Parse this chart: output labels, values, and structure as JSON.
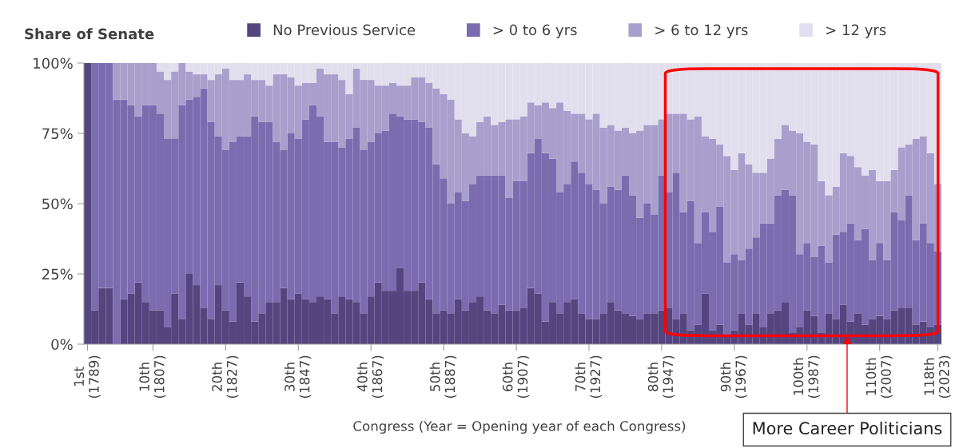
{
  "chart_data": {
    "type": "bar",
    "stacked": true,
    "title": "Share of Senate",
    "xlabel": "Congress (Year = Opening year of each Congress)",
    "categories": [
      "1st\n(1789)",
      null,
      null,
      null,
      null,
      null,
      null,
      null,
      null,
      "10th\n(1807)",
      null,
      null,
      null,
      null,
      null,
      null,
      null,
      null,
      null,
      "20th\n(1827)",
      null,
      null,
      null,
      null,
      null,
      null,
      null,
      null,
      null,
      "30th\n(1847)",
      null,
      null,
      null,
      null,
      null,
      null,
      null,
      null,
      null,
      "40th\n(1867)",
      null,
      null,
      null,
      null,
      null,
      null,
      null,
      null,
      null,
      "50th\n(1887)",
      null,
      null,
      null,
      null,
      null,
      null,
      null,
      null,
      null,
      "60th\n(1907)",
      null,
      null,
      null,
      null,
      null,
      null,
      null,
      null,
      null,
      "70th\n(1927)",
      null,
      null,
      null,
      null,
      null,
      null,
      null,
      null,
      null,
      "80th\n(1947)",
      null,
      null,
      null,
      null,
      null,
      null,
      null,
      null,
      null,
      "90th\n(1967)",
      null,
      null,
      null,
      null,
      null,
      null,
      null,
      null,
      null,
      "100th\n(1987)",
      null,
      null,
      null,
      null,
      null,
      null,
      null,
      null,
      null,
      "110th\n(2007)",
      null,
      null,
      null,
      null,
      null,
      null,
      null,
      "118th\n(2023)"
    ],
    "series": [
      {
        "name": "No Previous Service",
        "color": "#54457f",
        "values": [
          100,
          12,
          20,
          20,
          0,
          16,
          18,
          22,
          15,
          12,
          12,
          6,
          18,
          9,
          25,
          21,
          13,
          9,
          21,
          12,
          8,
          22,
          17,
          8,
          11,
          15,
          15,
          20,
          16,
          18,
          16,
          15,
          17,
          16,
          11,
          17,
          16,
          15,
          11,
          17,
          22,
          19,
          19,
          27,
          19,
          19,
          22,
          16,
          11,
          12,
          11,
          16,
          12,
          15,
          17,
          12,
          11,
          14,
          12,
          12,
          13,
          20,
          18,
          8,
          15,
          11,
          15,
          16,
          11,
          9,
          9,
          11,
          15,
          12,
          11,
          10,
          9,
          11,
          11,
          12,
          13,
          9,
          11,
          5,
          7,
          18,
          5,
          7,
          3,
          5,
          11,
          7,
          11,
          6,
          11,
          12,
          15,
          4,
          6,
          12,
          10,
          4,
          11,
          9,
          14,
          8,
          11,
          7,
          9,
          10,
          9,
          12,
          13,
          13,
          7,
          8,
          6,
          7
        ]
      },
      {
        "name": "> 0 to 6 yrs",
        "color": "#7b6cb0",
        "values": [
          0,
          88,
          80,
          80,
          87,
          71,
          67,
          59,
          70,
          73,
          70,
          67,
          55,
          76,
          62,
          67,
          78,
          70,
          53,
          57,
          64,
          52,
          57,
          73,
          68,
          64,
          57,
          49,
          59,
          55,
          64,
          70,
          64,
          56,
          61,
          53,
          57,
          62,
          58,
          55,
          53,
          57,
          63,
          54,
          61,
          61,
          57,
          61,
          53,
          47,
          39,
          38,
          39,
          42,
          43,
          48,
          49,
          46,
          40,
          46,
          45,
          48,
          55,
          60,
          51,
          43,
          42,
          49,
          50,
          48,
          46,
          39,
          41,
          43,
          49,
          43,
          36,
          39,
          35,
          48,
          41,
          52,
          36,
          46,
          29,
          29,
          35,
          42,
          26,
          27,
          19,
          27,
          27,
          37,
          32,
          41,
          40,
          49,
          26,
          24,
          21,
          31,
          18,
          30,
          26,
          35,
          26,
          34,
          21,
          26,
          21,
          35,
          31,
          40,
          30,
          35,
          30,
          26
        ]
      },
      {
        "name": "> 6 to 12 yrs",
        "color": "#a89fcc",
        "values": [
          0,
          0,
          0,
          0,
          13,
          13,
          15,
          19,
          15,
          15,
          15,
          21,
          24,
          15,
          10,
          8,
          5,
          15,
          22,
          29,
          22,
          20,
          22,
          13,
          15,
          13,
          24,
          27,
          20,
          19,
          13,
          8,
          17,
          24,
          24,
          24,
          16,
          21,
          25,
          22,
          17,
          16,
          11,
          11,
          12,
          15,
          16,
          16,
          27,
          30,
          37,
          26,
          24,
          17,
          19,
          21,
          18,
          19,
          28,
          22,
          23,
          18,
          12,
          18,
          18,
          32,
          26,
          17,
          21,
          23,
          27,
          27,
          22,
          21,
          17,
          22,
          31,
          28,
          32,
          20,
          28,
          21,
          35,
          29,
          45,
          27,
          33,
          22,
          38,
          30,
          38,
          30,
          23,
          18,
          23,
          20,
          23,
          23,
          43,
          36,
          40,
          23,
          24,
          17,
          28,
          24,
          26,
          19,
          32,
          22,
          28,
          15,
          26,
          18,
          36,
          31,
          32,
          24
        ]
      },
      {
        "name": "> 12 yrs",
        "color": "#e1dfee",
        "values": [
          0,
          0,
          0,
          0,
          0,
          0,
          0,
          0,
          0,
          0,
          3,
          6,
          3,
          0,
          3,
          4,
          4,
          6,
          4,
          2,
          6,
          6,
          4,
          6,
          6,
          8,
          4,
          4,
          5,
          8,
          7,
          7,
          2,
          4,
          4,
          6,
          11,
          2,
          6,
          6,
          8,
          8,
          7,
          8,
          8,
          5,
          5,
          7,
          9,
          11,
          13,
          20,
          25,
          26,
          21,
          19,
          22,
          21,
          20,
          20,
          19,
          14,
          15,
          14,
          16,
          14,
          17,
          18,
          18,
          20,
          18,
          23,
          22,
          24,
          23,
          25,
          24,
          22,
          22,
          20,
          18,
          18,
          18,
          20,
          19,
          26,
          27,
          29,
          33,
          38,
          32,
          36,
          39,
          39,
          34,
          27,
          22,
          24,
          25,
          28,
          29,
          42,
          47,
          44,
          32,
          33,
          37,
          40,
          38,
          42,
          42,
          38,
          30,
          29,
          27,
          26,
          32,
          43
        ]
      }
    ],
    "ylim": [
      0,
      100
    ],
    "yticks": [
      {
        "value": 0,
        "label": "0%"
      },
      {
        "value": 25,
        "label": "25%"
      },
      {
        "value": 50,
        "label": "50%"
      },
      {
        "value": 75,
        "label": "75%"
      },
      {
        "value": 100,
        "label": "100%"
      }
    ],
    "legend": "top",
    "grid": false,
    "marker": "square",
    "annotations": [
      {
        "text": "More Career Politicians",
        "y": 3
      }
    ]
  }
}
